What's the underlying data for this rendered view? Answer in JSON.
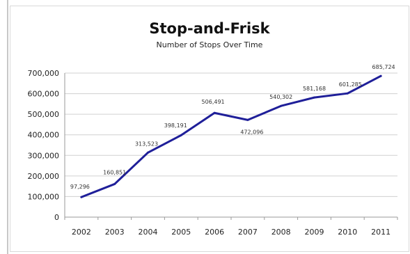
{
  "chart_data": {
    "type": "line",
    "title": "Stop-and-Frisk",
    "subtitle": "Number of Stops Over Time",
    "xlabel": "",
    "ylabel": "",
    "categories": [
      "2002",
      "2003",
      "2004",
      "2005",
      "2006",
      "2007",
      "2008",
      "2009",
      "2010",
      "2011"
    ],
    "series": [
      {
        "values": [
          97296,
          160851,
          313523,
          398191,
          506491,
          472096,
          540302,
          581168,
          601285,
          685724
        ]
      }
    ],
    "data_labels": [
      "97,296",
      "160,851",
      "313,523",
      "398,191",
      "506,491",
      "472,096",
      "540,302",
      "581,168",
      "601,285",
      "685,724"
    ],
    "ylim": [
      0,
      700000
    ],
    "yticks": [
      0,
      100000,
      200000,
      300000,
      400000,
      500000,
      600000,
      700000
    ],
    "ytick_labels": [
      "0",
      "100,000",
      "200,000",
      "300,000",
      "400,000",
      "500,000",
      "600,000",
      "700,000"
    ],
    "grid": true,
    "line_color": "#1f1f99"
  }
}
